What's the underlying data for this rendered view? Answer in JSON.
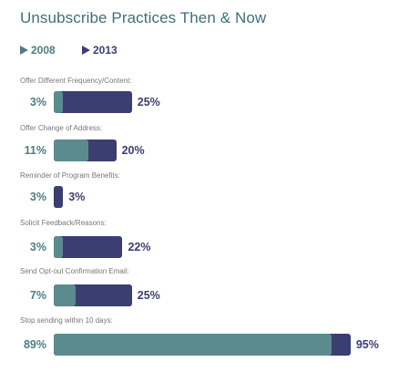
{
  "chart_data": {
    "type": "bar",
    "title": "Unsubscribe Practices Then & Now",
    "legend": [
      "2008",
      "2013"
    ],
    "legend_colors": {
      "2008": "#5b8b8f",
      "2013": "#3b3e70"
    },
    "categories": [
      "Offer Different Frequency/Content:",
      "Offer Change of Address:",
      "Reminder of Program Benefits:",
      "Solicit Feedback/Reasons:",
      "Send Opt-out Confirmation Email:",
      "Stop sending within 10 days:"
    ],
    "series": [
      {
        "name": "2008",
        "values": [
          3,
          11,
          3,
          3,
          7,
          89
        ],
        "labels": [
          "3%",
          "11%",
          "3%",
          "3%",
          "7%",
          "89%"
        ]
      },
      {
        "name": "2013",
        "values": [
          25,
          20,
          3,
          22,
          25,
          95
        ],
        "labels": [
          "25%",
          "20%",
          "3%",
          "22%",
          "25%",
          "95%"
        ]
      }
    ]
  }
}
